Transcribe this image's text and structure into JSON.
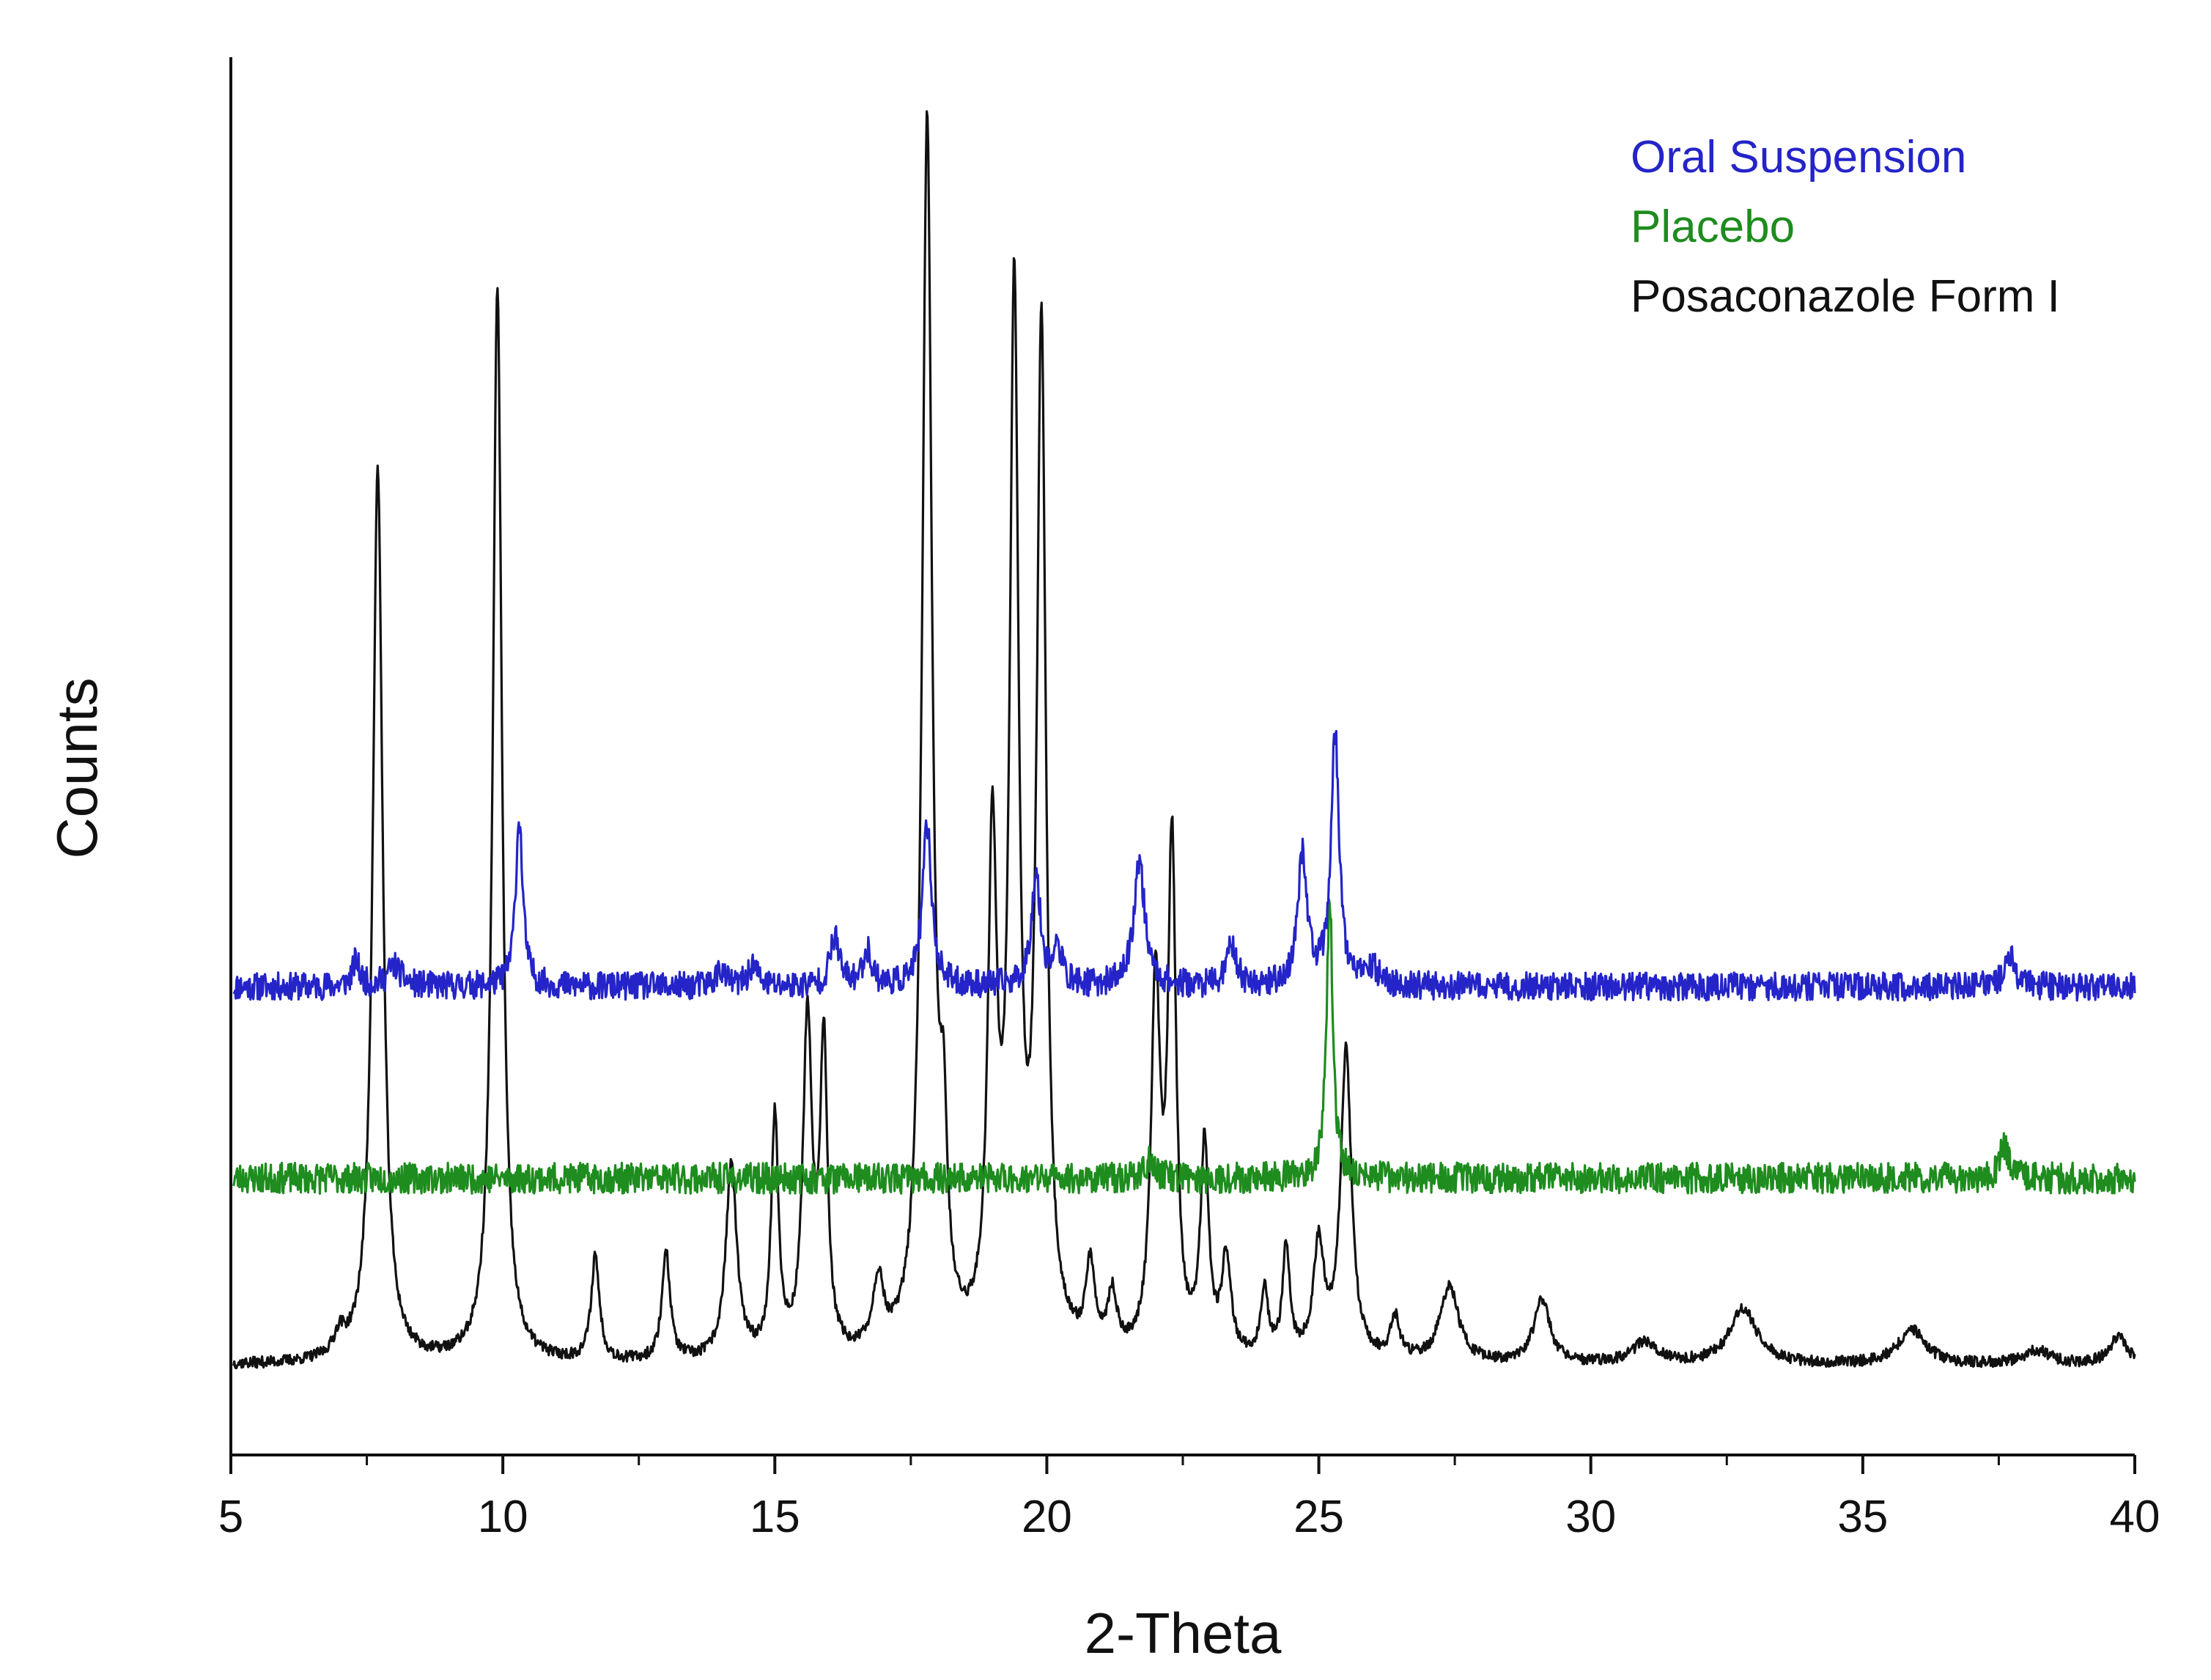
{
  "chart_data": {
    "type": "line",
    "title": "",
    "xlabel": "2-Theta",
    "ylabel": "Counts",
    "xlim": [
      5,
      40
    ],
    "ylim": [
      0,
      100
    ],
    "xticks": [
      5,
      10,
      15,
      20,
      25,
      30,
      35,
      40
    ],
    "y_tick_labels_shown": false,
    "grid": false,
    "legend_position": "top-right",
    "legend": [
      {
        "label": "Oral Suspension",
        "color": "#2424c8"
      },
      {
        "label": "Placebo",
        "color": "#1e8c1e"
      },
      {
        "label": "Posaconazole Form I",
        "color": "#111111"
      }
    ],
    "series": [
      {
        "name": "Oral Suspension",
        "color": "#2424c8",
        "baseline": 33.5,
        "noise": 1.0,
        "seed": 11,
        "peaks": [
          [
            7.3,
            1.8,
            0.08
          ],
          [
            8.0,
            1.5,
            0.15
          ],
          [
            10.3,
            12.0,
            0.08
          ],
          [
            14.0,
            1.2,
            0.1
          ],
          [
            14.6,
            1.5,
            0.1
          ],
          [
            16.1,
            3.5,
            0.1
          ],
          [
            16.7,
            2.5,
            0.1
          ],
          [
            17.8,
            11.5,
            0.1
          ],
          [
            19.8,
            8.0,
            0.1
          ],
          [
            20.2,
            2.5,
            0.1
          ],
          [
            21.7,
            9.0,
            0.12
          ],
          [
            23.4,
            3.0,
            0.1
          ],
          [
            24.7,
            9.5,
            0.1
          ],
          [
            25.3,
            18.0,
            0.09
          ],
          [
            26.0,
            1.2,
            0.12
          ],
          [
            37.7,
            2.5,
            0.1
          ]
        ]
      },
      {
        "name": "Placebo",
        "color": "#1e8c1e",
        "baseline": 19.8,
        "noise": 1.1,
        "seed": 23,
        "peaks": [
          [
            21.9,
            1.2,
            0.12
          ],
          [
            25.2,
            20.0,
            0.07
          ],
          [
            37.6,
            2.3,
            0.1
          ]
        ]
      },
      {
        "name": "Posaconazole Form I",
        "color": "#111111",
        "baseline": 6.4,
        "noise": 0.4,
        "seed": 37,
        "peaks": [
          [
            7.0,
            1.5,
            0.12
          ],
          [
            7.7,
            64.0,
            0.11
          ],
          [
            9.9,
            77.0,
            0.1
          ],
          [
            11.7,
            7.5,
            0.09
          ],
          [
            13.0,
            7.8,
            0.09
          ],
          [
            14.2,
            14.0,
            0.12
          ],
          [
            15.0,
            17.0,
            0.08
          ],
          [
            15.6,
            24.0,
            0.1
          ],
          [
            15.9,
            22.0,
            0.08
          ],
          [
            16.9,
            5.0,
            0.12
          ],
          [
            17.8,
            88.0,
            0.11
          ],
          [
            18.1,
            12.0,
            0.08
          ],
          [
            19.0,
            35.0,
            0.1
          ],
          [
            19.4,
            74.0,
            0.1
          ],
          [
            19.9,
            72.0,
            0.1
          ],
          [
            20.8,
            6.0,
            0.1
          ],
          [
            21.2,
            4.0,
            0.1
          ],
          [
            22.0,
            26.0,
            0.1
          ],
          [
            22.3,
            36.0,
            0.09
          ],
          [
            22.9,
            15.0,
            0.09
          ],
          [
            23.3,
            7.0,
            0.1
          ],
          [
            24.0,
            5.0,
            0.08
          ],
          [
            24.4,
            8.0,
            0.08
          ],
          [
            25.0,
            8.0,
            0.12
          ],
          [
            25.5,
            22.0,
            0.12
          ],
          [
            26.4,
            3.0,
            0.1
          ],
          [
            27.4,
            5.5,
            0.2
          ],
          [
            29.1,
            4.5,
            0.18
          ],
          [
            31.0,
            1.5,
            0.3
          ],
          [
            32.8,
            4.0,
            0.3
          ],
          [
            35.9,
            2.5,
            0.3
          ],
          [
            38.2,
            1.0,
            0.3
          ],
          [
            39.7,
            2.0,
            0.2
          ]
        ]
      }
    ]
  }
}
